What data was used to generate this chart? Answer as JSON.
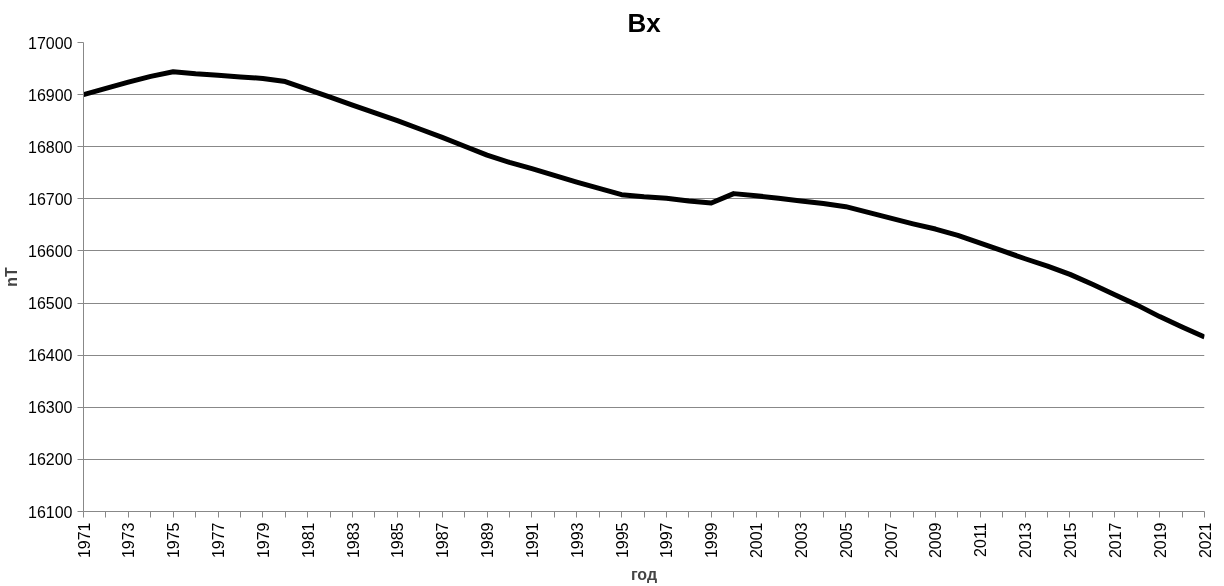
{
  "chart_data": {
    "type": "line",
    "title": "Bx",
    "xlabel": "год",
    "ylabel": "nT",
    "x": [
      1971,
      1972,
      1973,
      1974,
      1975,
      1976,
      1977,
      1978,
      1979,
      1980,
      1981,
      1982,
      1983,
      1984,
      1985,
      1986,
      1987,
      1988,
      1989,
      1990,
      1991,
      1992,
      1993,
      1994,
      1995,
      1996,
      1997,
      1998,
      1999,
      2000,
      2001,
      2002,
      2003,
      2004,
      2005,
      2006,
      2007,
      2008,
      2009,
      2010,
      2011,
      2012,
      2013,
      2014,
      2015,
      2016,
      2017,
      2018,
      2019,
      2020,
      2021
    ],
    "series": [
      {
        "color": "#000000",
        "values": [
          16900,
          16912,
          16924,
          16935,
          16944,
          16940,
          16937,
          16934,
          16931,
          16925,
          16910,
          16895,
          16880,
          16865,
          16850,
          16834,
          16818,
          16801,
          16784,
          16770,
          16758,
          16745,
          16732,
          16720,
          16708,
          16704,
          16701,
          16696,
          16692,
          16710,
          16706,
          16701,
          16696,
          16691,
          16685,
          16674,
          16663,
          16652,
          16642,
          16630,
          16615,
          16600,
          16585,
          16571,
          16555,
          16536,
          16516,
          16496,
          16474,
          16454,
          16435
        ]
      }
    ],
    "xlim": [
      1971,
      2021
    ],
    "xticks": [
      1971,
      {
        "value": 1972,
        "label": null
      },
      1973,
      {
        "value": 1974,
        "label": null
      },
      1975,
      {
        "value": 1976,
        "label": null
      },
      1977,
      {
        "value": 1978,
        "label": null
      },
      1979,
      {
        "value": 1980,
        "label": null
      },
      1981,
      {
        "value": 1982,
        "label": null
      },
      1983,
      {
        "value": 1984,
        "label": null
      },
      1985,
      {
        "value": 1986,
        "label": null
      },
      1987,
      {
        "value": 1988,
        "label": null
      },
      1989,
      {
        "value": 1990,
        "label": null
      },
      1991,
      {
        "value": 1992,
        "label": null
      },
      1993,
      {
        "value": 1994,
        "label": null
      },
      1995,
      {
        "value": 1996,
        "label": null
      },
      1997,
      {
        "value": 1998,
        "label": null
      },
      1999,
      {
        "value": 2000,
        "label": null
      },
      2001,
      {
        "value": 2002,
        "label": null
      },
      2003,
      {
        "value": 2004,
        "label": null
      },
      2005,
      {
        "value": 2006,
        "label": null
      },
      2007,
      {
        "value": 2008,
        "label": null
      },
      2009,
      {
        "value": 2010,
        "label": null
      },
      2011,
      {
        "value": 2012,
        "label": null
      },
      2013,
      {
        "value": 2014,
        "label": null
      },
      2015,
      {
        "value": 2016,
        "label": null
      },
      2017,
      {
        "value": 2018,
        "label": null
      },
      2019,
      {
        "value": 2020,
        "label": null
      },
      2021
    ],
    "ylim": [
      16100,
      17000
    ],
    "yticks": [
      16100,
      16200,
      16300,
      16400,
      16500,
      16600,
      16700,
      16800,
      16900,
      17000
    ],
    "grid": "y",
    "marker": "none",
    "line_style": "solid"
  }
}
